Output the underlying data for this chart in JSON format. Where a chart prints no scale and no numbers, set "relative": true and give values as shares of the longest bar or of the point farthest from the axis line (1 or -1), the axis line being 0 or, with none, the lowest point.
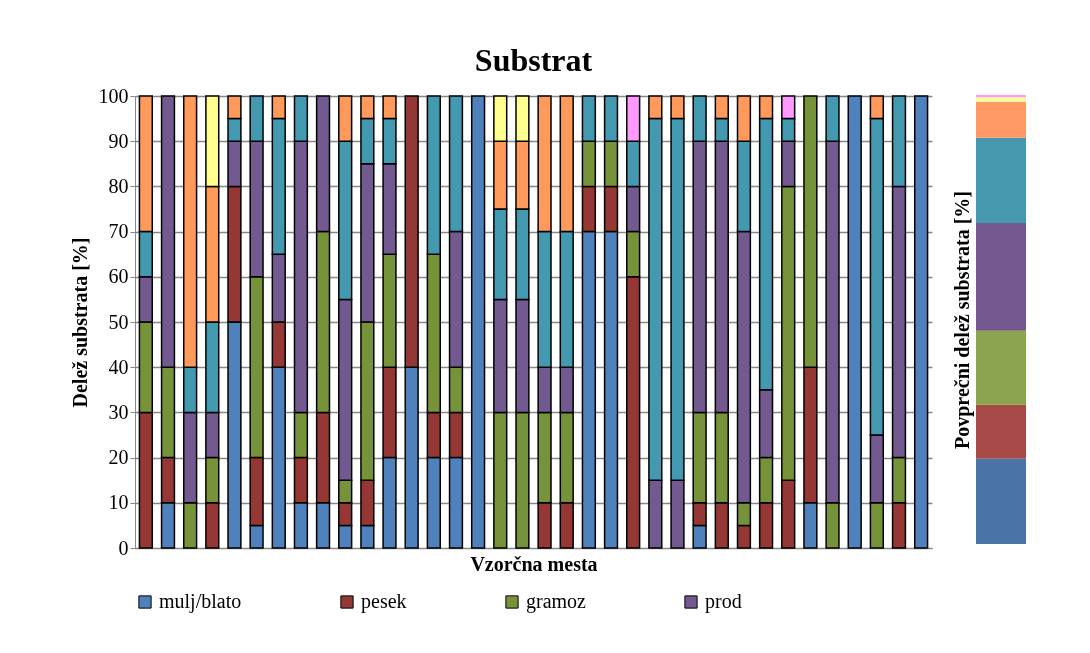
{
  "chart_data": [
    {
      "type": "bar",
      "title": "Substrat",
      "xlabel": "Vzorčna mesta",
      "ylabel": "Delež substrata [%]",
      "stacked": true,
      "grid": "y",
      "legend": "bottom",
      "categories": [
        null,
        null,
        null,
        null,
        null,
        null,
        null,
        null,
        null,
        null,
        null,
        null,
        null,
        null,
        null,
        null,
        null,
        null,
        null,
        null,
        null,
        null,
        null,
        null,
        null,
        null,
        null,
        null,
        null,
        null,
        null,
        null,
        null,
        null,
        null,
        null
      ],
      "ylim": [
        0,
        100
      ],
      "yticks": [
        0,
        10,
        20,
        30,
        40,
        50,
        60,
        70,
        80,
        90,
        100
      ],
      "series": [
        {
          "name": "mulj/blato",
          "color": "#4f81bd",
          "values": [
            0,
            10,
            0,
            0,
            50,
            5,
            40,
            10,
            10,
            5,
            5,
            20,
            40,
            20,
            20,
            100,
            0,
            0,
            0,
            0,
            70,
            70,
            0,
            0,
            0,
            5,
            0,
            0,
            0,
            0,
            10,
            0,
            100,
            0,
            0,
            100
          ]
        },
        {
          "name": "pesek",
          "color": "#953735",
          "values": [
            30,
            10,
            0,
            10,
            30,
            15,
            10,
            10,
            20,
            5,
            10,
            20,
            60,
            10,
            10,
            0,
            0,
            0,
            10,
            10,
            10,
            10,
            60,
            0,
            0,
            5,
            10,
            5,
            10,
            15,
            30,
            0,
            0,
            0,
            10,
            0
          ]
        },
        {
          "name": "gramoz",
          "color": "#779339",
          "values": [
            20,
            20,
            10,
            10,
            0,
            40,
            0,
            10,
            40,
            5,
            35,
            25,
            0,
            35,
            10,
            0,
            30,
            30,
            20,
            20,
            10,
            10,
            10,
            0,
            0,
            20,
            20,
            5,
            10,
            65,
            60,
            10,
            0,
            10,
            10,
            0
          ]
        },
        {
          "name": "prod",
          "color": "#725a90",
          "values": [
            10,
            60,
            20,
            10,
            10,
            30,
            15,
            60,
            30,
            40,
            35,
            20,
            0,
            0,
            30,
            0,
            25,
            25,
            10,
            10,
            0,
            0,
            10,
            15,
            15,
            60,
            60,
            60,
            15,
            10,
            0,
            80,
            0,
            15,
            60,
            0
          ]
        },
        {
          "color": "#4299b0",
          "values": [
            10,
            0,
            10,
            20,
            5,
            10,
            30,
            10,
            0,
            35,
            10,
            10,
            0,
            35,
            30,
            0,
            20,
            20,
            30,
            30,
            10,
            10,
            10,
            80,
            80,
            10,
            5,
            20,
            60,
            5,
            0,
            10,
            0,
            70,
            20,
            0
          ]
        },
        {
          "color": "#ff9a5c",
          "values": [
            30,
            0,
            60,
            30,
            5,
            0,
            5,
            0,
            0,
            10,
            5,
            5,
            0,
            0,
            0,
            0,
            15,
            15,
            30,
            30,
            0,
            0,
            0,
            5,
            5,
            0,
            5,
            10,
            5,
            0,
            0,
            0,
            0,
            5,
            0,
            0
          ]
        },
        {
          "color": "#ffff8f",
          "values": [
            0,
            0,
            0,
            20,
            0,
            0,
            0,
            0,
            0,
            0,
            0,
            0,
            0,
            0,
            0,
            0,
            10,
            10,
            0,
            0,
            0,
            0,
            0,
            0,
            0,
            0,
            0,
            0,
            0,
            0,
            0,
            0,
            0,
            0,
            0,
            0
          ]
        },
        {
          "color": "#ff99ff",
          "values": [
            0,
            0,
            0,
            0,
            0,
            0,
            0,
            0,
            0,
            0,
            0,
            0,
            0,
            0,
            0,
            0,
            0,
            0,
            0,
            0,
            0,
            0,
            10,
            0,
            0,
            0,
            0,
            0,
            0,
            5,
            0,
            0,
            0,
            0,
            0,
            0
          ]
        }
      ]
    },
    {
      "type": "bar",
      "ylabel": "Povprečni delež substrata [%]",
      "stacked": true,
      "relative": true,
      "categories": [
        null
      ],
      "series": [
        {
          "color": "#4a73a8",
          "values": [
            0.19
          ]
        },
        {
          "color": "#a84a48",
          "values": [
            0.12
          ]
        },
        {
          "color": "#8aa54e",
          "values": [
            0.165
          ]
        },
        {
          "color": "#735990",
          "values": [
            0.24
          ]
        },
        {
          "color": "#4598ad",
          "values": [
            0.19
          ]
        },
        {
          "color": "#ff9966",
          "values": [
            0.08
          ]
        },
        {
          "color": "#ffff99",
          "values": [
            0.01
          ]
        },
        {
          "color": "#ff99ff",
          "values": [
            0.005
          ]
        }
      ]
    }
  ]
}
